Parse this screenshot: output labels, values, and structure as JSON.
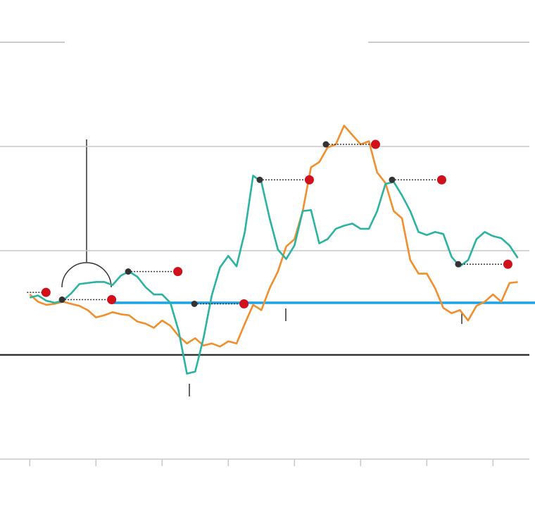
{
  "chart_data": {
    "type": "line",
    "xlim": [
      -3.6,
      60.4
    ],
    "ylim": [
      -10,
      30
    ],
    "xticks": [
      0,
      8,
      16,
      24,
      32,
      40,
      48,
      56
    ],
    "yticks": [
      -10,
      10,
      20
    ],
    "grid": true,
    "baseline": 0,
    "baseline_color": "#333333",
    "reference": {
      "value": 5,
      "color": "#1aa3e8"
    },
    "x": [
      0,
      1,
      2,
      3,
      4,
      5,
      6,
      7,
      8,
      9,
      10,
      11,
      12,
      13,
      14,
      15,
      16,
      17,
      18,
      19,
      20,
      21,
      22,
      23,
      24,
      25,
      26,
      27,
      28,
      29,
      30,
      31,
      32,
      33,
      34,
      35,
      36,
      37,
      38,
      39,
      40,
      41,
      42,
      43,
      44,
      45,
      46,
      47,
      48,
      49,
      50,
      51,
      52,
      53,
      54,
      55,
      56,
      57,
      58,
      59
    ],
    "series": [
      {
        "color": "#f28e2b",
        "values": [
          5.8,
          5.1,
          4.8,
          4.9,
          5.1,
          4.9,
          4.7,
          4.3,
          3.6,
          3.8,
          4.1,
          3.9,
          3.8,
          3.2,
          3.0,
          2.6,
          3.3,
          2.8,
          1.8,
          1.1,
          1.6,
          0.9,
          1.1,
          0.8,
          1.3,
          1.1,
          3.0,
          4.8,
          4.3,
          6.4,
          8.0,
          10.4,
          11.1,
          13.8,
          18.0,
          18.5,
          19.9,
          20.2,
          22.0,
          21.1,
          20.2,
          20.5,
          17.5,
          16.5,
          13.8,
          13.1,
          9.1,
          7.8,
          7.8,
          6.4,
          4.5,
          4.0,
          4.3,
          3.3,
          4.7,
          5.1,
          5.8,
          5.1,
          6.9,
          7.0
        ]
      },
      {
        "color": "#2ab3a0",
        "values": [
          5.5,
          5.7,
          5.2,
          5.0,
          5.2,
          5.9,
          6.8,
          6.9,
          7.0,
          7.0,
          6.7,
          7.6,
          8.0,
          7.5,
          6.5,
          5.8,
          5.8,
          5.0,
          2.3,
          -1.8,
          -1.6,
          1.6,
          5.7,
          8.4,
          9.5,
          8.5,
          11.8,
          17.2,
          16.6,
          13.1,
          10.1,
          9.2,
          10.5,
          13.8,
          13.9,
          10.7,
          11.1,
          12.1,
          12.4,
          12.6,
          12.1,
          12.1,
          13.8,
          16.4,
          16.6,
          15.3,
          13.8,
          11.8,
          11.5,
          11.8,
          11.6,
          9.4,
          8.5,
          9.1,
          11.1,
          11.8,
          11.4,
          11.2,
          10.5,
          9.3
        ]
      }
    ],
    "markers": [
      {
        "start": -0.34,
        "end": 1.96,
        "value": 6.0
      },
      {
        "start": 3.9,
        "end": 9.9,
        "value": 5.3
      },
      {
        "start": 11.9,
        "end": 17.9,
        "value": 8.0
      },
      {
        "start": 19.9,
        "end": 25.9,
        "value": 4.9
      },
      {
        "start": 27.8,
        "end": 33.8,
        "value": 16.8
      },
      {
        "start": 35.8,
        "end": 41.8,
        "value": 20.2
      },
      {
        "start": 43.8,
        "end": 49.8,
        "value": 16.8
      },
      {
        "start": 51.8,
        "end": 57.8,
        "value": 8.7
      }
    ],
    "marker_start_color": "#333333",
    "marker_end_color": "#d0101a"
  }
}
